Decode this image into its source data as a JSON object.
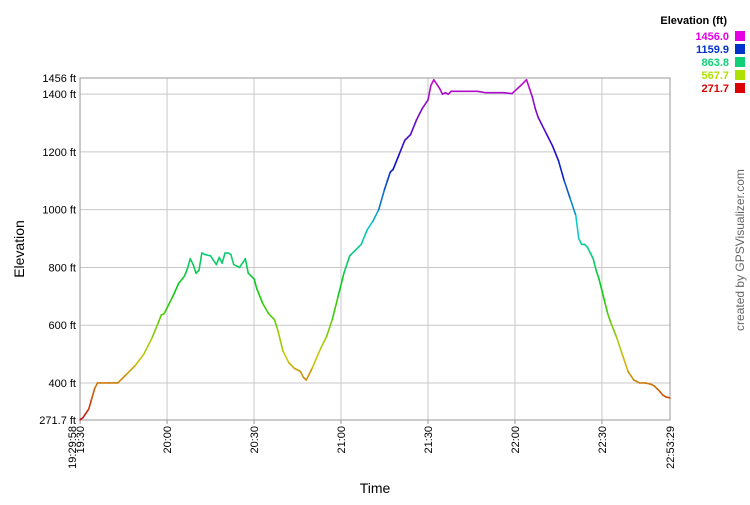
{
  "chart_data": {
    "type": "line",
    "xlabel": "Time",
    "ylabel": "Elevation",
    "unit": "ft",
    "x_start": "19:29:58",
    "x_end": "22:53:29",
    "ylim": [
      271.7,
      1456.0
    ],
    "yticks": [
      {
        "value": 400,
        "label": "400 ft"
      },
      {
        "value": 600,
        "label": "600 ft"
      },
      {
        "value": 800,
        "label": "800 ft"
      },
      {
        "value": 1000,
        "label": "1000 ft"
      },
      {
        "value": 1200,
        "label": "1200 ft"
      },
      {
        "value": 1400,
        "label": "1400 ft"
      }
    ],
    "ymin_label": "271.7 ft",
    "ymax_label": "1456 ft",
    "xticks": [
      "19:30",
      "20:00",
      "20:30",
      "21:00",
      "21:30",
      "22:00",
      "22:30"
    ],
    "grid": true,
    "legend": {
      "title": "Elevation (ft)",
      "placement": "top-right",
      "entries": [
        {
          "label": "1456.0",
          "color": "#e600e6"
        },
        {
          "label": "1159.9",
          "color": "#0033cc"
        },
        {
          "label": "863.8",
          "color": "#11d178"
        },
        {
          "label": "567.7",
          "color": "#aee000"
        },
        {
          "label": "271.7",
          "color": "#dd0000"
        }
      ]
    },
    "series": [
      {
        "x": [
          "19:29:58",
          "19:31",
          "19:32",
          "19:33",
          "19:34",
          "19:35",
          "19:36",
          "19:37",
          "19:40",
          "19:43",
          "19:46",
          "19:49",
          "19:52",
          "19:55",
          "19:57",
          "19:58",
          "19:59",
          "20:00",
          "20:02",
          "20:04",
          "20:06",
          "20:07",
          "20:08",
          "20:09",
          "20:10",
          "20:11",
          "20:12",
          "20:13",
          "20:15",
          "20:17",
          "20:18",
          "20:19",
          "20:20",
          "20:21",
          "20:22",
          "20:23",
          "20:25",
          "20:27",
          "20:28",
          "20:29",
          "20:30",
          "20:31",
          "20:33",
          "20:35",
          "20:37",
          "20:38",
          "20:40",
          "20:42",
          "20:44",
          "20:46",
          "20:47",
          "20:48",
          "20:50",
          "20:53",
          "20:55",
          "20:57",
          "20:59",
          "21:01",
          "21:03",
          "21:05",
          "21:07",
          "21:09",
          "21:11",
          "21:13",
          "21:15",
          "21:16",
          "21:17",
          "21:18",
          "21:20",
          "21:22",
          "21:24",
          "21:26",
          "21:28",
          "21:30",
          "21:31",
          "21:32",
          "21:33",
          "21:34",
          "21:35",
          "21:36",
          "21:37",
          "21:38",
          "21:39",
          "21:40",
          "21:42",
          "21:44",
          "21:47",
          "21:50",
          "21:53",
          "21:56",
          "21:59",
          "22:02",
          "22:04",
          "22:05",
          "22:06",
          "22:07",
          "22:08",
          "22:09",
          "22:11",
          "22:13",
          "22:15",
          "22:17",
          "22:19",
          "22:21",
          "22:22",
          "22:23",
          "22:24",
          "22:25",
          "22:26",
          "22:27",
          "22:28",
          "22:29",
          "22:30",
          "22:31",
          "22:32",
          "22:33",
          "22:35",
          "22:37",
          "22:39",
          "22:41",
          "22:43",
          "22:45",
          "22:47",
          "22:48",
          "22:49",
          "22:50",
          "22:51",
          "22:52",
          "22:53:29"
        ],
        "y": [
          272,
          280,
          295,
          310,
          345,
          380,
          400,
          400,
          400,
          400,
          430,
          460,
          500,
          560,
          610,
          635,
          640,
          660,
          700,
          745,
          770,
          795,
          830,
          810,
          780,
          790,
          850,
          845,
          840,
          810,
          835,
          815,
          850,
          850,
          845,
          810,
          800,
          830,
          780,
          770,
          760,
          725,
          675,
          640,
          620,
          590,
          510,
          470,
          450,
          440,
          420,
          410,
          450,
          520,
          560,
          620,
          700,
          780,
          840,
          860,
          880,
          930,
          960,
          1000,
          1070,
          1100,
          1130,
          1140,
          1190,
          1240,
          1260,
          1310,
          1350,
          1380,
          1430,
          1450,
          1435,
          1420,
          1400,
          1405,
          1400,
          1410,
          1410,
          1410,
          1410,
          1410,
          1410,
          1405,
          1405,
          1405,
          1402,
          1430,
          1450,
          1420,
          1390,
          1350,
          1320,
          1300,
          1260,
          1220,
          1170,
          1100,
          1040,
          980,
          900,
          880,
          880,
          870,
          850,
          830,
          790,
          760,
          720,
          680,
          640,
          610,
          560,
          500,
          440,
          410,
          400,
          400,
          395,
          390,
          380,
          370,
          358,
          352,
          348
        ]
      }
    ],
    "watermark": "created by GPSVisualizer.com"
  }
}
